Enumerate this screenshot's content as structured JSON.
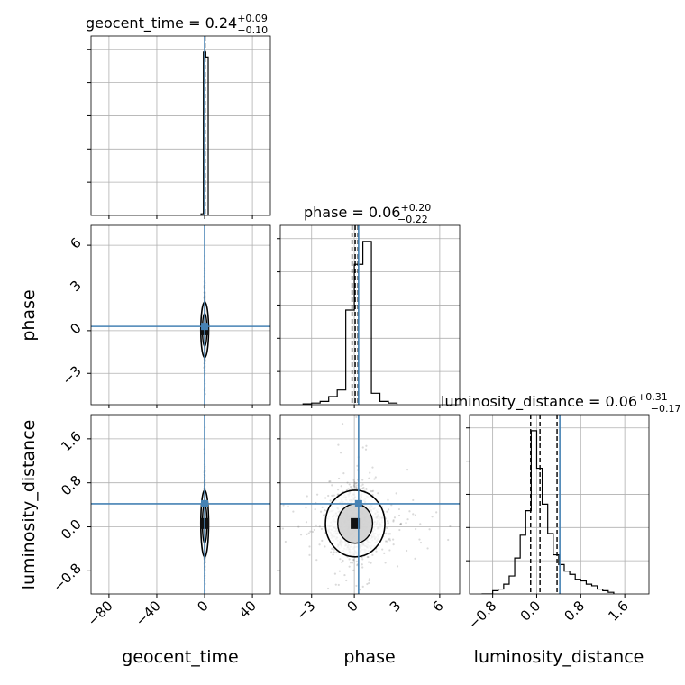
{
  "chart_data": {
    "type": "corner",
    "params": [
      "geocent_time",
      "phase",
      "luminosity_distance"
    ],
    "truths": [
      0.0,
      0.3,
      0.42
    ],
    "truth_color": "#4682b4",
    "grid": true,
    "ranges": {
      "geocent_time": [
        -95,
        55
      ],
      "phase": [
        -5.2,
        7.4
      ],
      "luminosity_distance": [
        -1.22,
        2.04
      ]
    },
    "ticks": {
      "geocent_time": [
        -80,
        -40,
        0,
        40
      ],
      "phase": [
        -3,
        0,
        3,
        6
      ],
      "luminosity_distance": [
        -0.8,
        0.0,
        0.8,
        1.6
      ]
    },
    "tick_labels": {
      "geocent_time": [
        "−80",
        "−40",
        "0",
        "40"
      ],
      "phase": [
        "−3",
        "0",
        "3",
        "6"
      ],
      "luminosity_distance": [
        "−0.8",
        "0.0",
        "0.8",
        "1.6"
      ]
    },
    "axis_labels": {
      "x": [
        "geocent_time",
        "phase",
        "luminosity_distance"
      ],
      "y": [
        "phase",
        "luminosity_distance"
      ]
    },
    "titles": [
      {
        "name": "geocent_time",
        "median": "0.24",
        "plus": "+0.09",
        "minus": "−0.10"
      },
      {
        "name": "phase",
        "median": "0.06",
        "plus": "+0.20",
        "minus": "−0.22"
      },
      {
        "name": "luminosity_distance",
        "median": "0.06",
        "plus": "+0.31",
        "minus": "−0.17"
      }
    ],
    "quantiles": {
      "geocent_time": [
        0.14,
        0.24,
        0.33
      ],
      "phase": [
        -0.16,
        0.06,
        0.26
      ],
      "luminosity_distance": [
        -0.11,
        0.06,
        0.37
      ]
    },
    "histograms": {
      "geocent_time": {
        "edges": [
          -3,
          -1,
          1,
          3,
          5
        ],
        "counts": [
          0.01,
          1.0,
          0.97,
          0.0
        ]
      },
      "phase": {
        "edges": [
          -3.6,
          -3.0,
          -2.4,
          -1.8,
          -1.2,
          -0.6,
          0.0,
          0.6,
          1.2,
          1.8,
          2.4,
          3.0
        ],
        "counts": [
          0.005,
          0.01,
          0.02,
          0.05,
          0.09,
          0.58,
          0.86,
          1.0,
          0.07,
          0.02,
          0.01
        ]
      },
      "luminosity_distance": {
        "edges": [
          -1.0,
          -0.8,
          -0.7,
          -0.6,
          -0.5,
          -0.4,
          -0.3,
          -0.2,
          -0.1,
          0.0,
          0.1,
          0.2,
          0.3,
          0.4,
          0.5,
          0.6,
          0.7,
          0.8,
          0.9,
          1.0,
          1.1,
          1.2,
          1.3,
          1.4
        ],
        "counts": [
          0.0,
          0.02,
          0.03,
          0.06,
          0.11,
          0.22,
          0.36,
          0.51,
          1.0,
          0.77,
          0.55,
          0.37,
          0.24,
          0.18,
          0.14,
          0.12,
          0.09,
          0.08,
          0.06,
          0.05,
          0.03,
          0.02,
          0.01
        ]
      }
    },
    "samples_2d": {
      "center": [
        0.06,
        0.06,
        0.06
      ],
      "spread": [
        0.12,
        0.9,
        0.28
      ]
    }
  }
}
